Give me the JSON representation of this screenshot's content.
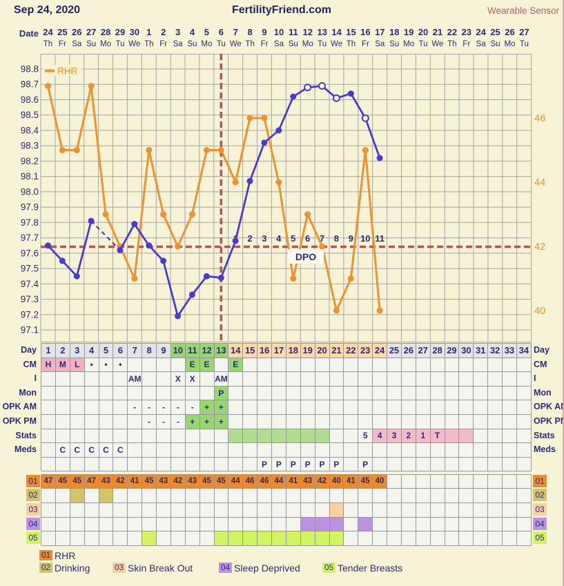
{
  "header": {
    "cycle_date": "Sep 24, 2020",
    "site_title": "FertilityFriend.com",
    "sensor_label": "Wearable Sensor"
  },
  "calendar": {
    "date_label": "Date",
    "dates": [
      "24",
      "25",
      "26",
      "27",
      "28",
      "29",
      "30",
      "1",
      "2",
      "3",
      "4",
      "5",
      "6",
      "7",
      "8",
      "9",
      "10",
      "11",
      "12",
      "13",
      "14",
      "15",
      "16",
      "17",
      "18",
      "19",
      "20",
      "21",
      "22",
      "23",
      "24",
      "25",
      "26",
      "27"
    ],
    "weekdays": [
      "Th",
      "Fr",
      "Sa",
      "Su",
      "Mo",
      "Tu",
      "We",
      "Th",
      "Fr",
      "Sa",
      "Su",
      "Mo",
      "Tu",
      "We",
      "Th",
      "Fr",
      "Sa",
      "Su",
      "Mo",
      "Tu",
      "We",
      "Th",
      "Fr",
      "Sa",
      "Su",
      "Mo",
      "Tu",
      "We",
      "Th",
      "Fr",
      "Sa",
      "Su",
      "Mo",
      "Tu"
    ]
  },
  "chart_data": {
    "type": "line",
    "days_total": 34,
    "left_axis": {
      "unit": "F",
      "min": 97.1,
      "max": 98.8,
      "tick_step": 0.1,
      "ticks": [
        "98.8",
        "98.7",
        "98.6",
        "98.5",
        "98.4",
        "98.3",
        "98.2",
        "98.1",
        "98.0",
        "97.9",
        "97.8",
        "97.7",
        "97.6",
        "97.5",
        "97.4",
        "97.3",
        "97.2",
        "97.1"
      ]
    },
    "right_axis": {
      "unit": "RHR",
      "ticks": [
        46,
        44,
        42,
        40
      ]
    },
    "series": [
      {
        "name": "Temperature",
        "color": "#4a3bd0",
        "days": [
          1,
          2,
          3,
          4,
          5,
          6,
          7,
          8,
          9,
          10,
          11,
          12,
          13,
          14,
          15,
          16,
          17,
          18,
          19,
          20,
          21,
          22,
          23,
          24
        ],
        "values": [
          97.65,
          97.55,
          97.45,
          97.81,
          null,
          97.62,
          97.79,
          97.65,
          97.55,
          97.19,
          97.33,
          97.45,
          97.44,
          97.68,
          98.07,
          98.32,
          98.4,
          98.62,
          98.68,
          98.69,
          98.61,
          98.64,
          98.48,
          98.22
        ],
        "open_circle_days": [
          19,
          20,
          21,
          23
        ],
        "missing_days": [
          5
        ]
      },
      {
        "name": "RHR",
        "color": "#f0912d",
        "days": [
          1,
          2,
          3,
          4,
          5,
          6,
          7,
          8,
          9,
          10,
          11,
          12,
          13,
          14,
          15,
          16,
          17,
          18,
          19,
          20,
          21,
          22,
          23,
          24
        ],
        "values": [
          47,
          45,
          45,
          47,
          43,
          42,
          41,
          45,
          43,
          42,
          43,
          45,
          45,
          44,
          46,
          46,
          44,
          41,
          43,
          42,
          40,
          41,
          45,
          40
        ]
      }
    ],
    "coverline_temp": 97.64,
    "coverline_rhr": 42,
    "ovulation_day": 13,
    "dpo": {
      "label": "DPO",
      "first_day": 14,
      "numbers": [
        "1",
        "2",
        "3",
        "4",
        "5",
        "6",
        "7",
        "8",
        "9",
        "10",
        "11"
      ]
    },
    "legend_label": "RHR"
  },
  "day_row": {
    "values": [
      "1",
      "2",
      "3",
      "4",
      "5",
      "6",
      "7",
      "8",
      "9",
      "10",
      "11",
      "12",
      "13",
      "14",
      "15",
      "16",
      "17",
      "18",
      "19",
      "20",
      "21",
      "22",
      "23",
      "24",
      "25",
      "26",
      "27",
      "28",
      "29",
      "30",
      "31",
      "32",
      "33",
      "34"
    ],
    "fertile_days": [
      10,
      11,
      12,
      13
    ],
    "luteal_days": [
      14,
      15,
      16,
      17,
      18,
      19,
      20,
      21,
      22,
      23,
      24
    ]
  },
  "tracking_rows": [
    {
      "key": "day",
      "label": "Day"
    },
    {
      "key": "cm",
      "label": "CM",
      "cells": [
        {
          "day": 1,
          "text": "H",
          "bg": "cm_pink"
        },
        {
          "day": 2,
          "text": "M",
          "bg": "cm_pink"
        },
        {
          "day": 3,
          "text": "L",
          "bg": "cm_pink"
        },
        {
          "day": 4,
          "text": "•"
        },
        {
          "day": 5,
          "text": "•"
        },
        {
          "day": 6,
          "text": "•"
        },
        {
          "day": 11,
          "text": "E",
          "bg": "fertile_green"
        },
        {
          "day": 12,
          "text": "E",
          "bg": "fertile_green"
        },
        {
          "day": 14,
          "text": "E",
          "bg": "fertile_green"
        }
      ]
    },
    {
      "key": "i",
      "label": "I",
      "cells": [
        {
          "day": 7,
          "text": "AM"
        },
        {
          "day": 10,
          "text": "X"
        },
        {
          "day": 11,
          "text": "X"
        },
        {
          "day": 13,
          "text": "AM"
        }
      ]
    },
    {
      "key": "mon",
      "label": "Mon",
      "cells": [
        {
          "day": 13,
          "text": "P",
          "bg": "fertile_green"
        }
      ]
    },
    {
      "key": "opk-am",
      "label": "OPK AM",
      "cells": [
        {
          "day": 7,
          "text": "-"
        },
        {
          "day": 8,
          "text": "-"
        },
        {
          "day": 9,
          "text": "-"
        },
        {
          "day": 10,
          "text": "-"
        },
        {
          "day": 11,
          "text": "-"
        },
        {
          "day": 12,
          "text": "+",
          "bg": "fertile_green"
        },
        {
          "day": 13,
          "text": "+",
          "bg": "fertile_green"
        }
      ]
    },
    {
      "key": "opk-pm",
      "label": "OPK PM",
      "cells": [
        {
          "day": 8,
          "text": "-"
        },
        {
          "day": 9,
          "text": "-"
        },
        {
          "day": 10,
          "text": "-"
        },
        {
          "day": 11,
          "text": "+",
          "bg": "fertile_green"
        },
        {
          "day": 12,
          "text": "+",
          "bg": "fertile_green"
        },
        {
          "day": 13,
          "text": "+",
          "bg": "fertile_green"
        }
      ]
    },
    {
      "key": "stats",
      "label": "Stats",
      "cells": [
        {
          "day": 14,
          "bg": "stats_green"
        },
        {
          "day": 15,
          "bg": "stats_green"
        },
        {
          "day": 16,
          "bg": "stats_green"
        },
        {
          "day": 17,
          "bg": "stats_green"
        },
        {
          "day": 18,
          "bg": "stats_green"
        },
        {
          "day": 19,
          "bg": "stats_green"
        },
        {
          "day": 20,
          "bg": "stats_green"
        },
        {
          "day": 23,
          "text": "5"
        },
        {
          "day": 24,
          "text": "4",
          "bg": "stats_pink"
        },
        {
          "day": 25,
          "text": "3",
          "bg": "stats_pink"
        },
        {
          "day": 26,
          "text": "2",
          "bg": "stats_pink"
        },
        {
          "day": 27,
          "text": "1",
          "bg": "stats_pink"
        },
        {
          "day": 28,
          "text": "T",
          "bg": "stats_pink"
        },
        {
          "day": 29,
          "bg": "stats_pink"
        },
        {
          "day": 30,
          "bg": "stats_pink"
        }
      ]
    },
    {
      "key": "meds",
      "label": "Meds",
      "cells": [
        {
          "day": 2,
          "text": "C"
        },
        {
          "day": 3,
          "text": "C"
        },
        {
          "day": 4,
          "text": "C"
        },
        {
          "day": 5,
          "text": "C"
        },
        {
          "day": 6,
          "text": "C"
        }
      ]
    },
    {
      "key": "meds2",
      "label": "",
      "cells": [
        {
          "day": 16,
          "text": "P"
        },
        {
          "day": 17,
          "text": "P"
        },
        {
          "day": 18,
          "text": "P"
        },
        {
          "day": 19,
          "text": "P"
        },
        {
          "day": 20,
          "text": "P"
        },
        {
          "day": 21,
          "text": "P"
        },
        {
          "day": 23,
          "text": "P"
        }
      ]
    }
  ],
  "data_rows": [
    {
      "code": "01",
      "label": "RHR",
      "color_key": "row01",
      "values": [
        "47",
        "45",
        "45",
        "47",
        "43",
        "42",
        "41",
        "45",
        "43",
        "42",
        "43",
        "45",
        "45",
        "44",
        "46",
        "46",
        "44",
        "41",
        "43",
        "42",
        "40",
        "41",
        "45",
        "40"
      ]
    },
    {
      "code": "02",
      "label": "Drinking",
      "color_key": "row02",
      "filled_days": [
        3,
        5
      ]
    },
    {
      "code": "03",
      "label": "Skin Break Out",
      "color_key": "row03",
      "filled_days": [
        21
      ]
    },
    {
      "code": "04",
      "label": "Sleep Deprived",
      "color_key": "row04",
      "filled_days": [
        19,
        20,
        21,
        23
      ]
    },
    {
      "code": "05",
      "label": "Tender Breasts",
      "color_key": "row05",
      "filled_days": [
        8,
        13,
        14,
        15,
        16,
        17,
        18,
        19,
        20,
        21
      ]
    }
  ],
  "legend": {
    "rows": [
      [
        "01"
      ],
      [
        "02",
        "03",
        "04",
        "05"
      ]
    ]
  },
  "colors": {
    "page_bg": "#f6f3d6",
    "navy_text": "#2b2b78",
    "header_navy": "#22225e",
    "sensor_red": "#c9596b",
    "chart_grid": "#a5a5a5",
    "cell_border": "#97979b",
    "cell_bg": "#f5f5ef",
    "day_gray": "#e4e4e6",
    "fertile_green": "#98d672",
    "luteal_peach": "#fbd9ab",
    "cm_pink": "#f1b1c2",
    "stats_green": "#b2dc91",
    "stats_pink": "#f3bbca",
    "temp_blue": "#4a3bd0",
    "rhr_orange": "#f0912d",
    "dashed_red": "#c0504d",
    "dpo_box": "#fdfbef",
    "row01": "#eb8a2e",
    "row02": "#d4c468",
    "row03": "#f8d0a1",
    "row04": "#bd92e2",
    "row05": "#d2f463"
  }
}
